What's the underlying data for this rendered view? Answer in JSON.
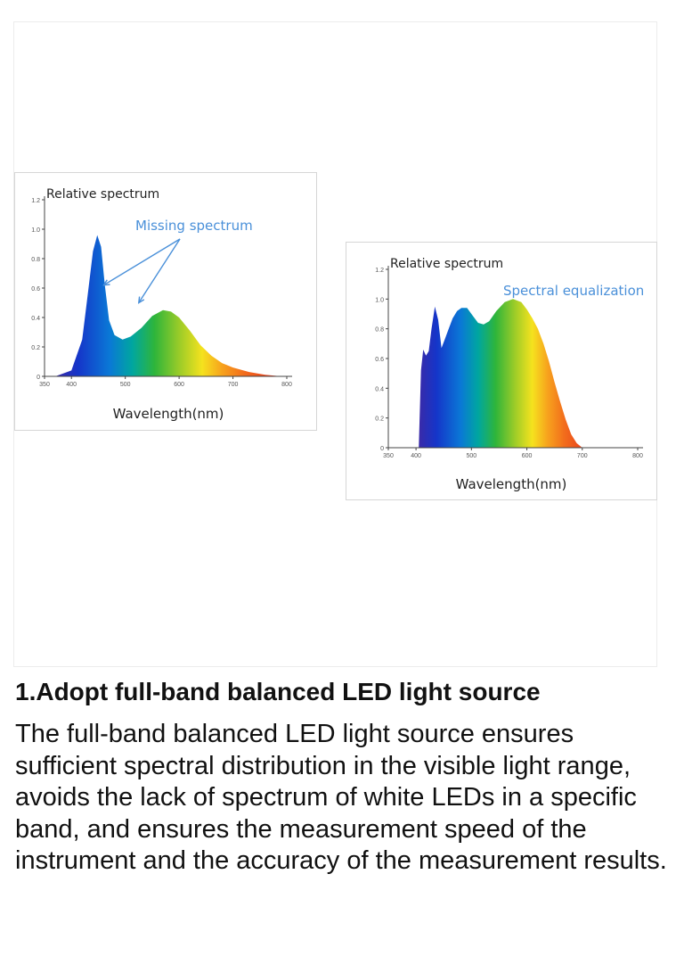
{
  "colors": {
    "text": "#111111",
    "annotation": "#4a90d9",
    "arrow": "#4a90d9"
  },
  "chart_data": [
    {
      "type": "area",
      "title": "Relative spectrum",
      "annotation": "Missing spectrum",
      "xlabel": "Wavelength(nm)",
      "ylabel": "",
      "xlim": [
        350,
        800
      ],
      "ylim": [
        0,
        1.2
      ],
      "x_ticks": [
        "350",
        "400",
        "500",
        "600",
        "700",
        "800"
      ],
      "y_ticks": [
        "0",
        "0.2",
        "0.4",
        "0.6",
        "0.8",
        "1.0",
        "1.2"
      ],
      "x": [
        370,
        400,
        420,
        430,
        440,
        448,
        455,
        462,
        470,
        480,
        495,
        510,
        530,
        550,
        570,
        585,
        600,
        620,
        640,
        660,
        680,
        700,
        730,
        760,
        790
      ],
      "values": [
        0,
        0.04,
        0.25,
        0.55,
        0.85,
        0.96,
        0.88,
        0.62,
        0.38,
        0.28,
        0.25,
        0.27,
        0.33,
        0.41,
        0.45,
        0.44,
        0.4,
        0.31,
        0.21,
        0.14,
        0.09,
        0.06,
        0.03,
        0.01,
        0
      ]
    },
    {
      "type": "area",
      "title": "Relative spectrum",
      "annotation": "Spectral equalization",
      "xlabel": "Wavelength(nm)",
      "ylabel": "",
      "xlim": [
        350,
        800
      ],
      "ylim": [
        0,
        1.2
      ],
      "x_ticks": [
        "350",
        "400",
        "500",
        "600",
        "700",
        "800"
      ],
      "y_ticks": [
        "0",
        "0.2",
        "0.4",
        "0.6",
        "0.8",
        "1.0",
        "1.2"
      ],
      "x": [
        405,
        409,
        413,
        418,
        423,
        428,
        434,
        440,
        446,
        452,
        458,
        466,
        474,
        482,
        492,
        502,
        512,
        522,
        532,
        545,
        560,
        575,
        590,
        600,
        610,
        620,
        630,
        640,
        650,
        660,
        670,
        680,
        690,
        700,
        720
      ],
      "values": [
        0,
        0.52,
        0.66,
        0.62,
        0.65,
        0.8,
        0.95,
        0.86,
        0.67,
        0.73,
        0.79,
        0.87,
        0.92,
        0.94,
        0.94,
        0.89,
        0.84,
        0.83,
        0.85,
        0.92,
        0.98,
        1.0,
        0.98,
        0.93,
        0.87,
        0.8,
        0.7,
        0.58,
        0.44,
        0.31,
        0.19,
        0.09,
        0.03,
        0,
        0
      ]
    }
  ],
  "heading": "1.Adopt full-band balanced LED light source",
  "body": "The full-band balanced LED light source ensures sufficient spectral distribution in the visible light range, avoids the lack of spectrum of white LEDs in a specific band, and ensures the measurement speed of the instrument and the accuracy of the measurement results."
}
